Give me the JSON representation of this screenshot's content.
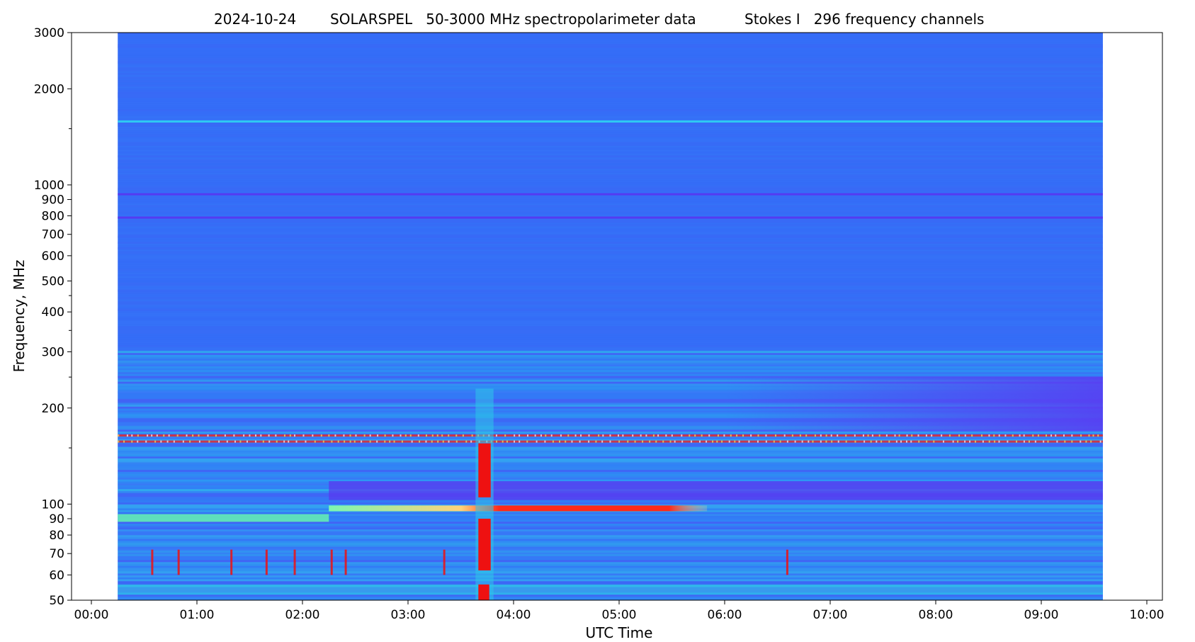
{
  "chart_data": {
    "type": "heatmap",
    "title_parts": [
      "2024-10-24",
      "SOLARSPEL   50-3000 MHz spectropolarimeter data",
      "Stokes I   296 frequency channels"
    ],
    "xlabel": "UTC Time",
    "ylabel": "Frequency, MHz",
    "y_scale": "log",
    "ylim": [
      50,
      3000
    ],
    "xlim": [
      "00:00",
      "10:00"
    ],
    "data_time_range": [
      "00:15",
      "09:35"
    ],
    "x_tick_labels": [
      "00:00",
      "01:00",
      "02:00",
      "03:00",
      "04:00",
      "05:00",
      "06:00",
      "07:00",
      "08:00",
      "09:00",
      "10:00"
    ],
    "y_tick_labels": [
      "50",
      "60",
      "70",
      "80",
      "90",
      "100",
      "200",
      "300",
      "400",
      "500",
      "600",
      "700",
      "800",
      "900",
      "1000",
      "2000",
      "3000"
    ],
    "colormap": "rainbow (blue = low, red = high)",
    "background_color": "#3570f7",
    "features": [
      {
        "type": "burst",
        "time_start": "03:40",
        "time_end": "03:47",
        "freq_low": 50,
        "freq_high": 230,
        "color": "#ee1111"
      },
      {
        "type": "band",
        "time_start": "02:15",
        "time_end": "05:50",
        "freq": 97,
        "color": "#ff2a1a"
      },
      {
        "type": "band",
        "time_start": "00:15",
        "time_end": "02:15",
        "freq": 91,
        "color": "#66f0b0"
      },
      {
        "type": "rfi_line",
        "freq": 164,
        "color": "#ee2222"
      },
      {
        "type": "rfi_line",
        "freq": 157,
        "color": "#ee2222"
      },
      {
        "type": "rfi_line",
        "freq": 1580,
        "color": "#2ee0f0"
      },
      {
        "type": "rfi_line",
        "freq": 935,
        "color": "#5c2ef0"
      },
      {
        "type": "rfi_line",
        "freq": 790,
        "color": "#5c2ef0"
      }
    ]
  }
}
